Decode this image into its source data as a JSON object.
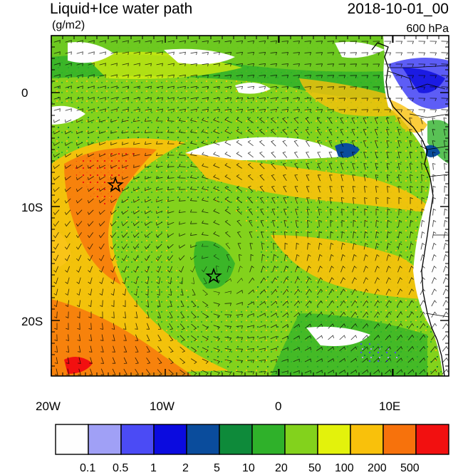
{
  "header": {
    "title": "Liquid+Ice water path",
    "datetime": "2018-10-01_00",
    "units": "(g/m2)",
    "level": "600 hPa"
  },
  "axes": {
    "lat_labels": [
      "0",
      "10S",
      "20S"
    ],
    "lon_labels": [
      "20W",
      "10W",
      "0",
      "10E"
    ]
  },
  "colorbar": {
    "labels": [
      "0.1",
      "0.5",
      "1",
      "2",
      "5",
      "10",
      "20",
      "50",
      "100",
      "200",
      "500"
    ],
    "colors": [
      "#fefefe",
      "#a0a0f6",
      "#4b4bf5",
      "#0b0bdf",
      "#0a4c9c",
      "#0e8a3a",
      "#2fb12a",
      "#83d21c",
      "#e3f20c",
      "#f9c10b",
      "#f7720c",
      "#f21010"
    ]
  },
  "map": {
    "markers": [
      "star",
      "star"
    ],
    "region": "Southeast Atlantic / Southwest Africa"
  }
}
